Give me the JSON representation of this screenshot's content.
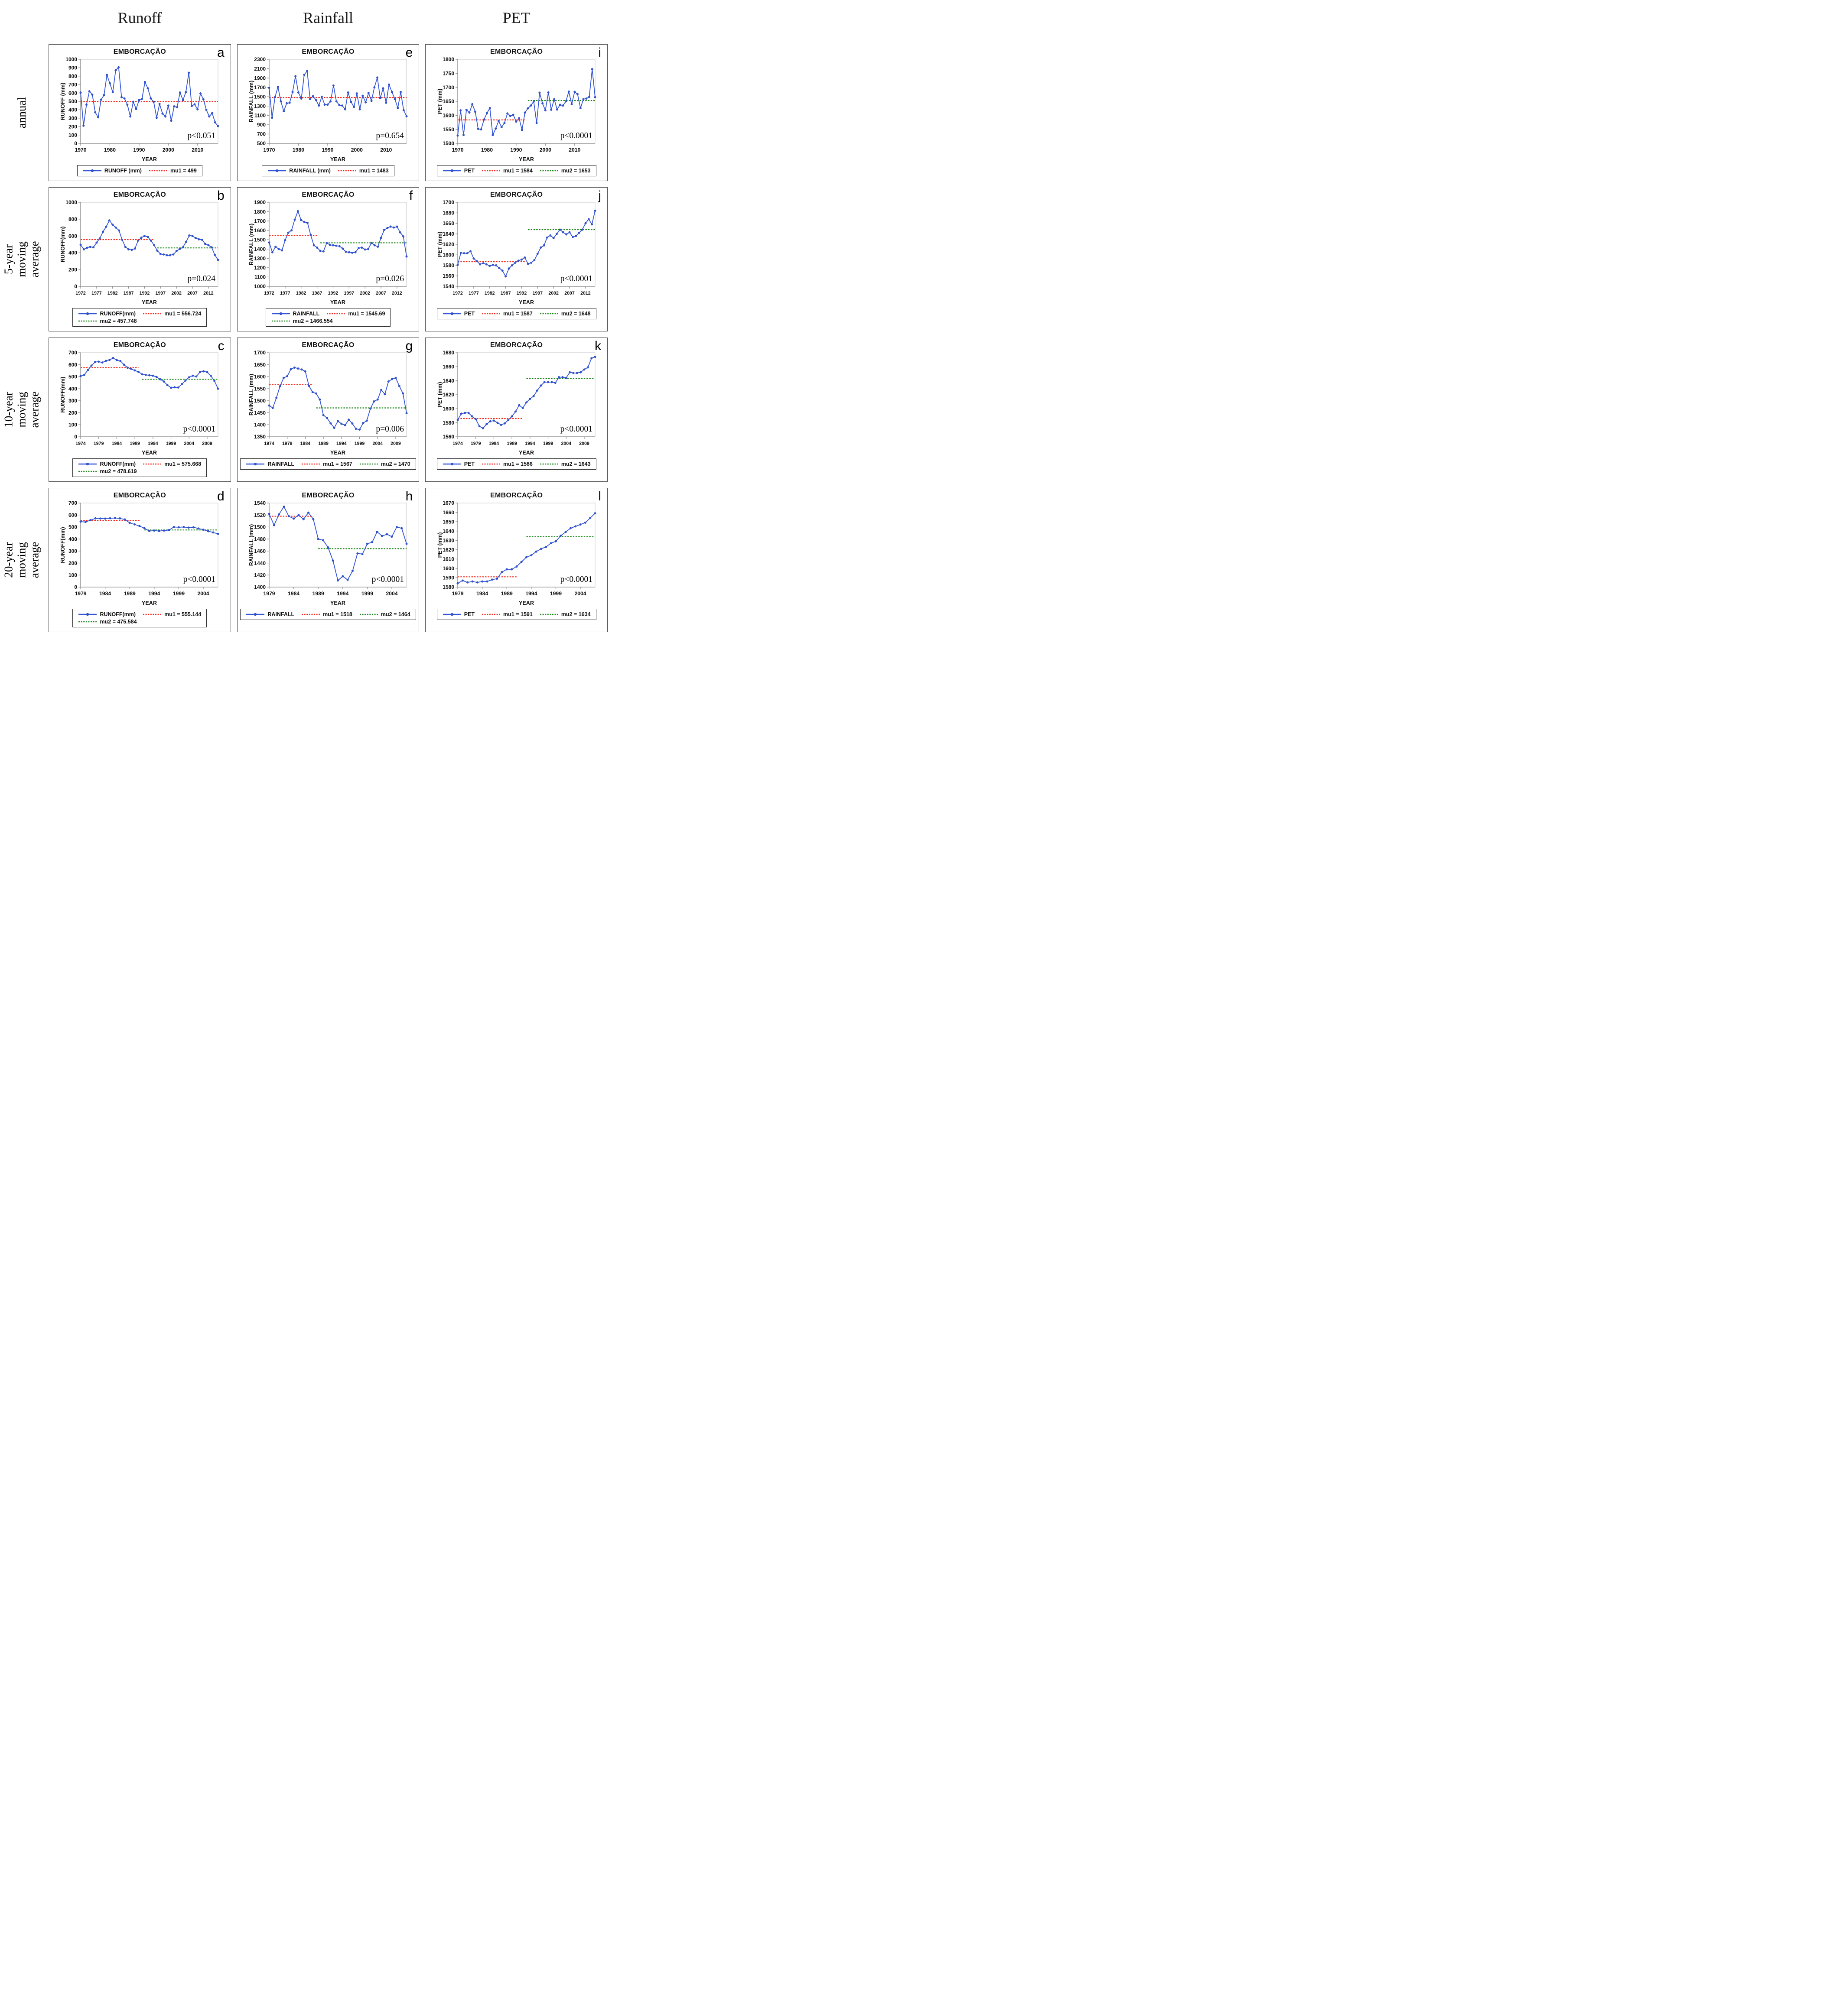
{
  "headers": [
    "Runoff",
    "Rainfall",
    "PET"
  ],
  "row_labels": [
    "annual",
    "5-year moving\naverage",
    "10-year moving\naverage",
    "20-year moving\naverage"
  ],
  "colors": {
    "series": "#3355d8",
    "marker_edge": "#1e3fae",
    "mu1": "#f8281e",
    "mu2": "#1c871c",
    "axis": "#8c8c8c",
    "plot_border": "#d4d4d4"
  },
  "chart_data": [
    {
      "type": "line",
      "letter": "a",
      "title": "EMBORCAÇÃO",
      "ylabel": "RUNOFF (mm)",
      "xlabel": "YEAR",
      "ylim": [
        0,
        1000
      ],
      "ystep": 100,
      "x_range": [
        1970,
        2017
      ],
      "xticks": [
        1970,
        1980,
        1990,
        2000,
        2010
      ],
      "values": [
        605,
        210,
        460,
        620,
        580,
        370,
        310,
        520,
        575,
        815,
        715,
        610,
        870,
        905,
        550,
        535,
        460,
        320,
        495,
        410,
        515,
        530,
        730,
        655,
        535,
        495,
        305,
        470,
        355,
        320,
        450,
        270,
        440,
        430,
        605,
        515,
        610,
        840,
        445,
        465,
        405,
        595,
        525,
        400,
        320,
        360,
        250,
        205
      ],
      "mu1": {
        "value": 499,
        "label": "mu1 = 499",
        "from": 1970,
        "to": 2017
      },
      "mu2": null,
      "p": "p<0.051",
      "legend_rows": [
        [
          {
            "key": "series",
            "label": "RUNOFF (mm)"
          },
          {
            "key": "mu1",
            "label": "mu1 = 499"
          }
        ]
      ]
    },
    {
      "type": "line",
      "letter": "e",
      "title": "EMBORCAÇÃO",
      "ylabel": "RAINFALL (mm)",
      "xlabel": "YEAR",
      "ylim": [
        500,
        2300
      ],
      "ystep": 200,
      "x_range": [
        1970,
        2017
      ],
      "xticks": [
        1970,
        1980,
        1990,
        2000,
        2010
      ],
      "values": [
        1690,
        1050,
        1490,
        1710,
        1400,
        1190,
        1360,
        1370,
        1600,
        1940,
        1590,
        1460,
        1970,
        2050,
        1450,
        1510,
        1430,
        1310,
        1500,
        1330,
        1330,
        1400,
        1740,
        1400,
        1320,
        1310,
        1230,
        1590,
        1390,
        1280,
        1570,
        1230,
        1520,
        1380,
        1580,
        1410,
        1700,
        1910,
        1470,
        1680,
        1370,
        1760,
        1600,
        1450,
        1260,
        1600,
        1210,
        1080
      ],
      "mu1": {
        "value": 1483,
        "label": "mu1 = 1483",
        "from": 1970,
        "to": 2017
      },
      "mu2": null,
      "p": "p=0.654",
      "legend_rows": [
        [
          {
            "key": "series",
            "label": "RAINFALL (mm)"
          },
          {
            "key": "mu1",
            "label": "mu1 = 1483"
          }
        ]
      ]
    },
    {
      "type": "line",
      "letter": "i",
      "title": "EMBORCAÇÃO",
      "ylabel": "PET (mm)",
      "xlabel": "YEAR",
      "ylim": [
        1500,
        1800
      ],
      "ystep": 50,
      "x_range": [
        1970,
        2017
      ],
      "xticks": [
        1970,
        1980,
        1990,
        2000,
        2010
      ],
      "values": [
        1528,
        1618,
        1530,
        1620,
        1610,
        1640,
        1613,
        1552,
        1550,
        1585,
        1608,
        1626,
        1530,
        1553,
        1580,
        1558,
        1573,
        1607,
        1598,
        1602,
        1578,
        1590,
        1548,
        1610,
        1625,
        1635,
        1650,
        1573,
        1681,
        1643,
        1618,
        1682,
        1620,
        1658,
        1621,
        1638,
        1635,
        1650,
        1685,
        1640,
        1684,
        1676,
        1626,
        1658,
        1660,
        1666,
        1765,
        1665
      ],
      "mu1": {
        "value": 1584,
        "label": "mu1 = 1584",
        "from": 1970,
        "to": 1993
      },
      "mu2": {
        "value": 1653,
        "label": "mu2 = 1653",
        "from": 1994,
        "to": 2017
      },
      "p": "p<0.0001",
      "legend_rows": [
        [
          {
            "key": "series",
            "label": "PET"
          },
          {
            "key": "mu1",
            "label": "mu1 = 1584"
          },
          {
            "key": "mu2",
            "label": "mu2 = 1653"
          }
        ]
      ]
    },
    {
      "type": "line",
      "letter": "b",
      "title": "EMBORCAÇÃO",
      "ylabel": "RUNOFF(mm)",
      "xlabel": "YEAR",
      "ylim": [
        0,
        1000
      ],
      "ystep": 200,
      "x_range": [
        1972,
        2015
      ],
      "xticks": [
        1972,
        1977,
        1982,
        1987,
        1992,
        1997,
        2002,
        2007,
        2012
      ],
      "values": [
        495,
        440,
        460,
        470,
        465,
        520,
        570,
        650,
        710,
        785,
        735,
        700,
        665,
        555,
        470,
        440,
        435,
        450,
        545,
        580,
        600,
        590,
        545,
        490,
        425,
        385,
        380,
        370,
        370,
        380,
        420,
        445,
        465,
        530,
        605,
        600,
        575,
        560,
        555,
        505,
        490,
        465,
        375,
        315
      ],
      "mu1": {
        "value": 556.724,
        "label": "mu1 = 556.724",
        "from": 1972,
        "to": 1995
      },
      "mu2": {
        "value": 457.748,
        "label": "mu2 = 457.748",
        "from": 1996,
        "to": 2015
      },
      "p": "p=0.024",
      "legend_rows": [
        [
          {
            "key": "series",
            "label": "RUNOFF(mm)"
          },
          {
            "key": "mu1",
            "label": "mu1 = 556.724"
          }
        ],
        [
          {
            "key": "mu2",
            "label": "mu2 = 457.748"
          }
        ]
      ]
    },
    {
      "type": "line",
      "letter": "f",
      "title": "EMBORCAÇÃO",
      "ylabel": "RAINFALL (mm)",
      "xlabel": "YEAR",
      "ylim": [
        1000,
        1900
      ],
      "ystep": 100,
      "x_range": [
        1972,
        2015
      ],
      "xticks": [
        1972,
        1977,
        1982,
        1987,
        1992,
        1997,
        2002,
        2007,
        2012
      ],
      "values": [
        1470,
        1365,
        1425,
        1400,
        1385,
        1495,
        1575,
        1600,
        1715,
        1805,
        1710,
        1690,
        1680,
        1550,
        1440,
        1415,
        1380,
        1375,
        1465,
        1445,
        1440,
        1435,
        1430,
        1405,
        1370,
        1365,
        1360,
        1365,
        1410,
        1415,
        1395,
        1400,
        1465,
        1440,
        1425,
        1520,
        1605,
        1625,
        1640,
        1630,
        1640,
        1578,
        1535,
        1320
      ],
      "mu1": {
        "value": 1545.69,
        "label": "mu1 = 1545.69",
        "from": 1972,
        "to": 1987
      },
      "mu2": {
        "value": 1466.554,
        "label": "mu2 = 1466.554",
        "from": 1988,
        "to": 2015
      },
      "p": "p=0.026",
      "legend_rows": [
        [
          {
            "key": "series",
            "label": "RAINFALL"
          },
          {
            "key": "mu1",
            "label": "mu1 = 1545.69"
          }
        ],
        [
          {
            "key": "mu2",
            "label": "mu2 = 1466.554"
          }
        ]
      ]
    },
    {
      "type": "line",
      "letter": "j",
      "title": "EMBORCAÇÃO",
      "ylabel": "PET (mm)",
      "xlabel": "YEAR",
      "ylim": [
        1540,
        1700
      ],
      "ystep": 20,
      "x_range": [
        1972,
        2015
      ],
      "xticks": [
        1972,
        1977,
        1982,
        1987,
        1992,
        1997,
        2002,
        2007,
        2012
      ],
      "values": [
        1581,
        1604,
        1603,
        1603,
        1607,
        1593,
        1588,
        1582,
        1584,
        1582,
        1579,
        1581,
        1580,
        1575,
        1570,
        1559,
        1574,
        1580,
        1585,
        1589,
        1591,
        1595,
        1583,
        1585,
        1590,
        1602,
        1614,
        1618,
        1633,
        1637,
        1632,
        1640,
        1648,
        1643,
        1639,
        1643,
        1634,
        1636,
        1642,
        1648,
        1660,
        1668,
        1658,
        1684
      ],
      "mu1": {
        "value": 1587,
        "label": "mu1 = 1587",
        "from": 1972,
        "to": 1993
      },
      "mu2": {
        "value": 1648,
        "label": "mu2 = 1648",
        "from": 1994,
        "to": 2015
      },
      "p": "p<0.0001",
      "legend_rows": [
        [
          {
            "key": "series",
            "label": "PET"
          },
          {
            "key": "mu1",
            "label": "mu1 = 1587"
          },
          {
            "key": "mu2",
            "label": "mu2 = 1648"
          }
        ]
      ]
    },
    {
      "type": "line",
      "letter": "c",
      "title": "EMBORCAÇÃO",
      "ylabel": "RUNOFF(mm)",
      "xlabel": "YEAR",
      "ylim": [
        0,
        700
      ],
      "ystep": 100,
      "x_range": [
        1974,
        2012
      ],
      "xticks": [
        1974,
        1979,
        1984,
        1989,
        1994,
        1999,
        2004,
        2009
      ],
      "values": [
        505,
        515,
        555,
        592,
        622,
        625,
        618,
        632,
        640,
        655,
        638,
        630,
        600,
        575,
        565,
        552,
        540,
        520,
        515,
        512,
        508,
        498,
        478,
        460,
        430,
        408,
        412,
        410,
        438,
        468,
        495,
        508,
        502,
        538,
        545,
        538,
        508,
        465,
        400
      ],
      "mu1": {
        "value": 575.668,
        "label": "mu1 = 575.668",
        "from": 1974,
        "to": 1990
      },
      "mu2": {
        "value": 478.619,
        "label": "mu2 = 478.619",
        "from": 1991,
        "to": 2012
      },
      "p": "p<0.0001",
      "legend_rows": [
        [
          {
            "key": "series",
            "label": "RUNOFF(mm)"
          },
          {
            "key": "mu1",
            "label": "mu1 = 575.668"
          }
        ],
        [
          {
            "key": "mu2",
            "label": "mu2 = 478.619"
          }
        ]
      ]
    },
    {
      "type": "line",
      "letter": "g",
      "title": "EMBORCAÇÃO",
      "ylabel": "RAINFALL (mm)",
      "xlabel": "YEAR",
      "ylim": [
        1350,
        1700
      ],
      "ystep": 50,
      "x_range": [
        1974,
        2012
      ],
      "xticks": [
        1974,
        1979,
        1984,
        1989,
        1994,
        1999,
        2004,
        2009
      ],
      "values": [
        1480,
        1470,
        1512,
        1560,
        1595,
        1602,
        1631,
        1638,
        1634,
        1630,
        1622,
        1562,
        1536,
        1530,
        1505,
        1440,
        1428,
        1406,
        1387,
        1415,
        1404,
        1398,
        1421,
        1405,
        1383,
        1380,
        1407,
        1417,
        1467,
        1497,
        1505,
        1545,
        1527,
        1580,
        1590,
        1595,
        1561,
        1530,
        1448
      ],
      "mu1": {
        "value": 1567,
        "label": "mu1 = 1567",
        "from": 1974,
        "to": 1986
      },
      "mu2": {
        "value": 1470,
        "label": "mu2 = 1470",
        "from": 1987,
        "to": 2012
      },
      "p": "p=0.006",
      "legend_rows": [
        [
          {
            "key": "series",
            "label": "RAINFALL"
          },
          {
            "key": "mu1",
            "label": "mu1 = 1567"
          },
          {
            "key": "mu2",
            "label": "mu2 = 1470"
          }
        ]
      ]
    },
    {
      "type": "line",
      "letter": "k",
      "title": "EMBORCAÇÃO",
      "ylabel": "PET (mm)",
      "xlabel": "YEAR",
      "ylim": [
        1560,
        1680
      ],
      "ystep": 20,
      "x_range": [
        1974,
        2012
      ],
      "xticks": [
        1974,
        1979,
        1984,
        1989,
        1994,
        1999,
        2004,
        2009
      ],
      "values": [
        1584,
        1593,
        1594,
        1594,
        1589,
        1585,
        1575,
        1572,
        1578,
        1582,
        1583,
        1580,
        1577,
        1579,
        1584,
        1589,
        1596,
        1605,
        1601,
        1609,
        1614,
        1618,
        1626,
        1633,
        1638,
        1638,
        1638,
        1637,
        1645,
        1645,
        1644,
        1652,
        1651,
        1651,
        1652,
        1656,
        1659,
        1672,
        1674
      ],
      "mu1": {
        "value": 1586,
        "label": "mu1 = 1586",
        "from": 1974,
        "to": 1992
      },
      "mu2": {
        "value": 1643,
        "label": "mu2 = 1643",
        "from": 1993,
        "to": 2012
      },
      "p": "p<0.0001",
      "legend_rows": [
        [
          {
            "key": "series",
            "label": "PET"
          },
          {
            "key": "mu1",
            "label": "mu1 = 1586"
          },
          {
            "key": "mu2",
            "label": "mu2 = 1643"
          }
        ]
      ]
    },
    {
      "type": "line",
      "letter": "d",
      "title": "EMBORCAÇÃO",
      "ylabel": "RUNOFF(mm)",
      "xlabel": "YEAR",
      "ylim": [
        0,
        700
      ],
      "ystep": 100,
      "x_range": [
        1979,
        2007
      ],
      "xticks": [
        1979,
        1984,
        1989,
        1994,
        1999,
        2004
      ],
      "values": [
        545,
        542,
        557,
        572,
        571,
        570,
        573,
        575,
        572,
        563,
        535,
        522,
        508,
        490,
        467,
        470,
        467,
        470,
        475,
        500,
        498,
        500,
        495,
        498,
        488,
        478,
        465,
        455,
        443
      ],
      "mu1": {
        "value": 555.144,
        "label": "mu1 = 555.144",
        "from": 1979,
        "to": 1991
      },
      "mu2": {
        "value": 475.584,
        "label": "mu2 = 475.584",
        "from": 1992,
        "to": 2007
      },
      "p": "p<0.0001",
      "legend_rows": [
        [
          {
            "key": "series",
            "label": "RUNOFF(mm)"
          },
          {
            "key": "mu1",
            "label": "mu1 = 555.144"
          }
        ],
        [
          {
            "key": "mu2",
            "label": "mu2 = 475.584"
          }
        ]
      ]
    },
    {
      "type": "line",
      "letter": "h",
      "title": "EMBORCAÇÃO",
      "ylabel": "RAINFALL (mm)",
      "xlabel": "YEAR",
      "ylim": [
        1400,
        1540
      ],
      "ystep": 20,
      "x_range": [
        1979,
        2007
      ],
      "xticks": [
        1979,
        1984,
        1989,
        1994,
        1999,
        2004
      ],
      "values": [
        1522,
        1503,
        1521,
        1534,
        1518,
        1514,
        1520,
        1513,
        1524,
        1513,
        1480,
        1478,
        1466,
        1444,
        1411,
        1418,
        1412,
        1427,
        1456,
        1455,
        1472,
        1475,
        1492,
        1485,
        1488,
        1484,
        1500,
        1498,
        1472
      ],
      "mu1": {
        "value": 1518,
        "label": "mu1 = 1518",
        "from": 1979,
        "to": 1988
      },
      "mu2": {
        "value": 1464,
        "label": "mu2 = 1464",
        "from": 1989,
        "to": 2007
      },
      "p": "p<0.0001",
      "legend_rows": [
        [
          {
            "key": "series",
            "label": "RAINFALL"
          },
          {
            "key": "mu1",
            "label": "mu1 = 1518"
          },
          {
            "key": "mu2",
            "label": "mu2 = 1464"
          }
        ]
      ]
    },
    {
      "type": "line",
      "letter": "l",
      "title": "EMBORCAÇÃO",
      "ylabel": "PET (mm)",
      "xlabel": "YEAR",
      "ylim": [
        1580,
        1670
      ],
      "ystep": 10,
      "x_range": [
        1979,
        2007
      ],
      "xticks": [
        1979,
        1984,
        1989,
        1994,
        1999,
        2004
      ],
      "values": [
        1584,
        1587,
        1585,
        1586,
        1585,
        1586,
        1586,
        1588,
        1589,
        1596,
        1599,
        1599,
        1602,
        1607,
        1612,
        1614,
        1618,
        1621,
        1623,
        1627,
        1629,
        1635,
        1639,
        1643,
        1645,
        1647,
        1649,
        1654,
        1659
      ],
      "mu1": {
        "value": 1591,
        "label": "mu1 = 1591",
        "from": 1979,
        "to": 1991
      },
      "mu2": {
        "value": 1634,
        "label": "mu2 = 1634",
        "from": 1993,
        "to": 2007
      },
      "p": "p<0.0001",
      "legend_rows": [
        [
          {
            "key": "series",
            "label": "PET"
          },
          {
            "key": "mu1",
            "label": "mu1 = 1591"
          },
          {
            "key": "mu2",
            "label": "mu2 = 1634"
          }
        ]
      ]
    }
  ]
}
